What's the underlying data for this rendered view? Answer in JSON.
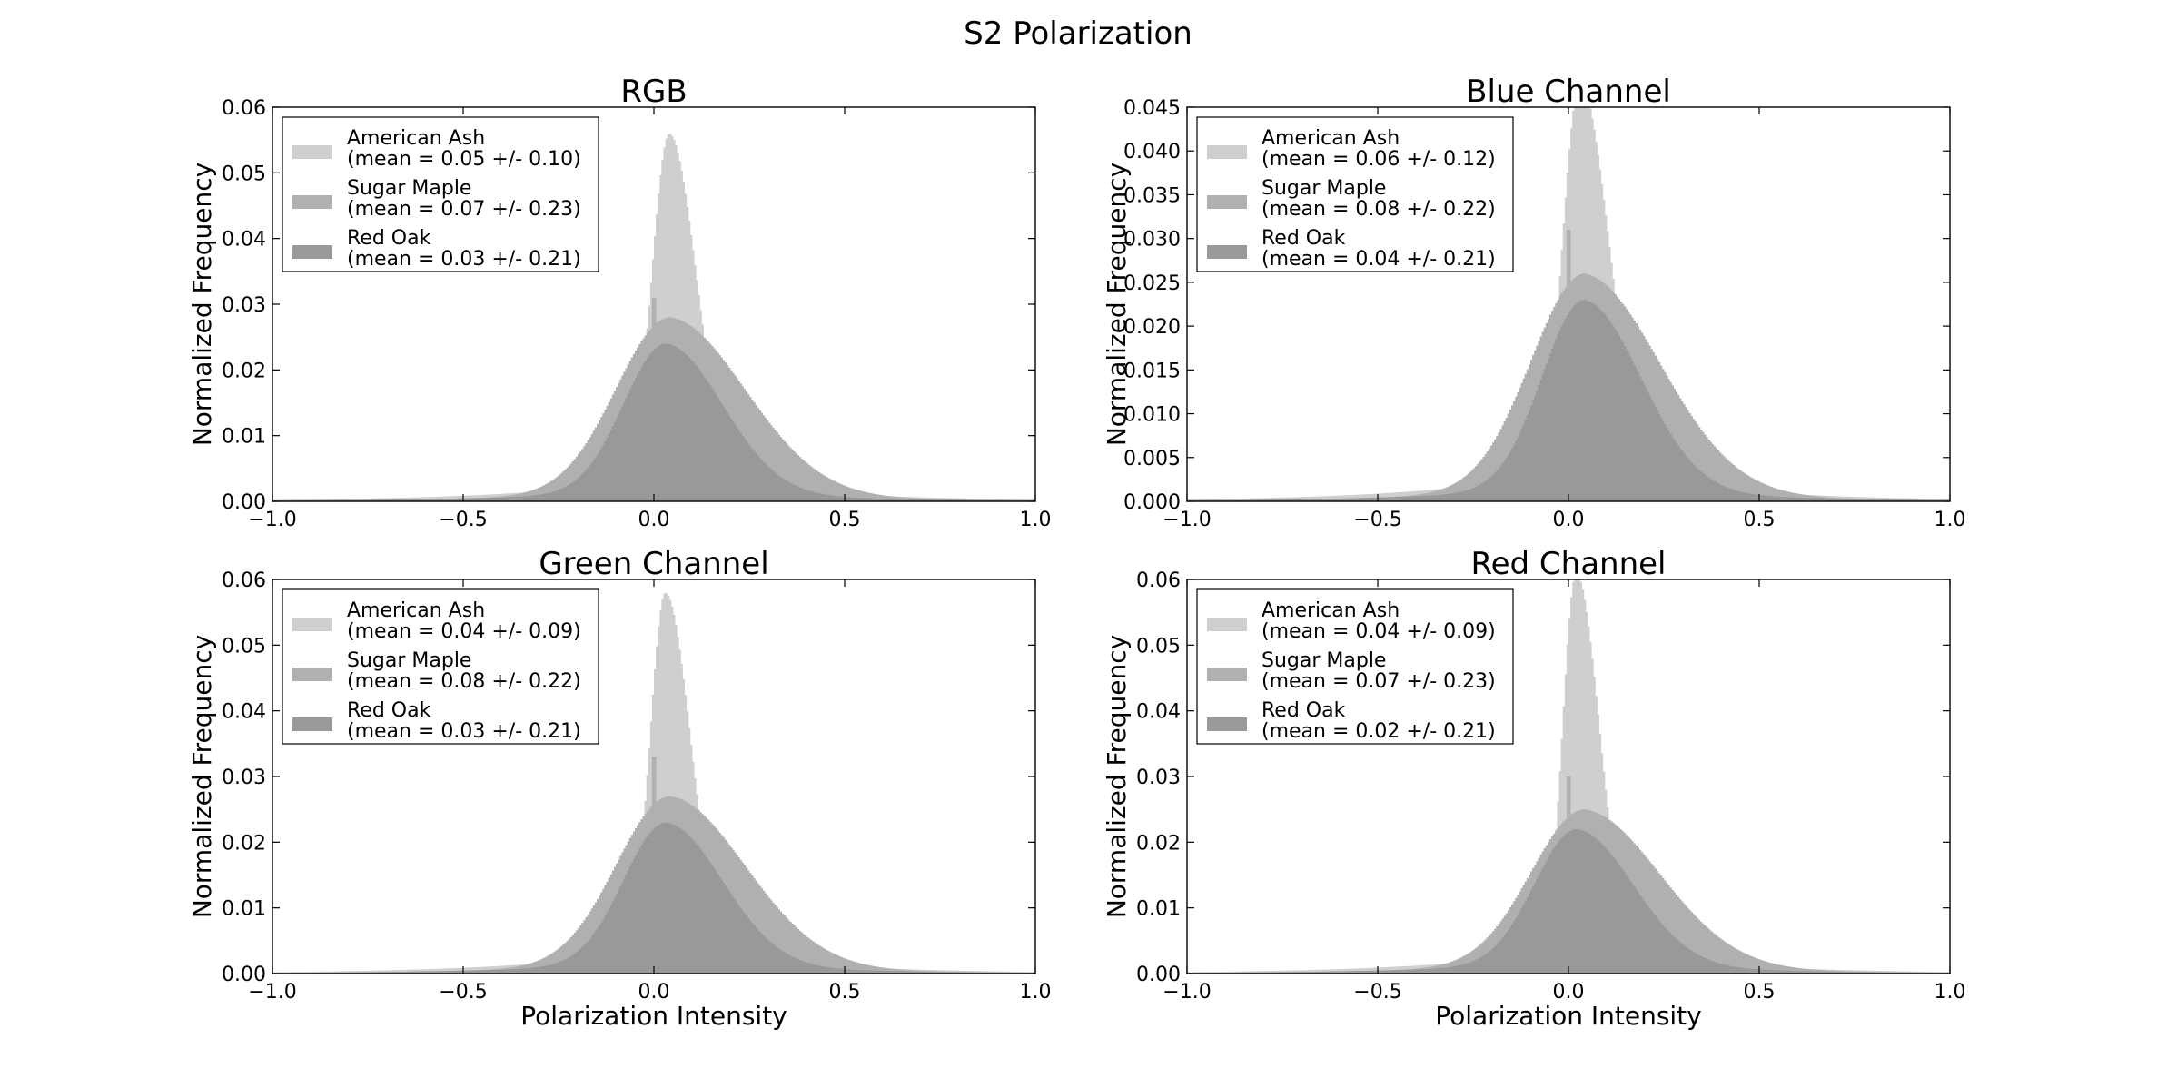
{
  "figure": {
    "title": "S2 Polarization"
  },
  "colors": {
    "American Ash": "#cfcfcf",
    "Sugar Maple": "#b0b0b0",
    "Red Oak": "#999999",
    "legend_border": "#000000",
    "axis": "#000000"
  },
  "chart_data": [
    {
      "type": "bar",
      "chart_kind": "histogram",
      "title": "RGB",
      "xlabel": "",
      "ylabel": "Normalized Frequency",
      "xlim": [
        -1.0,
        1.0
      ],
      "ylim": [
        0,
        0.06
      ],
      "xticks": [
        "−1.0",
        "−0.5",
        "0.0",
        "0.5",
        "1.0"
      ],
      "yticks": [
        "0.00",
        "0.01",
        "0.02",
        "0.03",
        "0.04",
        "0.05",
        "0.06"
      ],
      "legend_position": "upper-left",
      "series": [
        {
          "name": "American Ash",
          "stat": "(mean = 0.05 +/- 0.10)",
          "peak": 0.052,
          "center": 0.04,
          "sigma_left": 0.045,
          "sigma_right": 0.07,
          "tail": 0.004
        },
        {
          "name": "Sugar Maple",
          "stat": "(mean = 0.07 +/- 0.23)",
          "peak": 0.026,
          "center": 0.04,
          "sigma_left": 0.14,
          "sigma_right": 0.2,
          "tail": 0.002,
          "spike_x": 0.0,
          "spike_y": 0.031
        },
        {
          "name": "Red Oak",
          "stat": "(mean = 0.03 +/- 0.21)",
          "peak": 0.022,
          "center": 0.03,
          "sigma_left": 0.11,
          "sigma_right": 0.15,
          "tail": 0.002
        }
      ]
    },
    {
      "type": "bar",
      "chart_kind": "histogram",
      "title": "Blue Channel",
      "xlabel": "",
      "ylabel": "Normalized Frequency",
      "xlim": [
        -1.0,
        1.0
      ],
      "ylim": [
        0,
        0.045
      ],
      "xticks": [
        "−1.0",
        "−0.5",
        "0.0",
        "0.5",
        "1.0"
      ],
      "yticks": [
        "0.000",
        "0.005",
        "0.010",
        "0.015",
        "0.020",
        "0.025",
        "0.030",
        "0.035",
        "0.040",
        "0.045"
      ],
      "legend_position": "upper-left",
      "series": [
        {
          "name": "American Ash",
          "stat": "(mean = 0.06 +/- 0.12)",
          "peak": 0.044,
          "center": 0.03,
          "sigma_left": 0.045,
          "sigma_right": 0.075,
          "tail": 0.004
        },
        {
          "name": "Sugar Maple",
          "stat": "(mean = 0.08 +/- 0.22)",
          "peak": 0.024,
          "center": 0.04,
          "sigma_left": 0.14,
          "sigma_right": 0.2,
          "tail": 0.002,
          "spike_x": 0.0,
          "spike_y": 0.031
        },
        {
          "name": "Red Oak",
          "stat": "(mean = 0.04 +/- 0.21)",
          "peak": 0.021,
          "center": 0.04,
          "sigma_left": 0.11,
          "sigma_right": 0.15,
          "tail": 0.002
        }
      ]
    },
    {
      "type": "bar",
      "chart_kind": "histogram",
      "title": "Green Channel",
      "xlabel": "Polarization Intensity",
      "ylabel": "Normalized Frequency",
      "xlim": [
        -1.0,
        1.0
      ],
      "ylim": [
        0,
        0.06
      ],
      "xticks": [
        "−1.0",
        "−0.5",
        "0.0",
        "0.5",
        "1.0"
      ],
      "yticks": [
        "0.00",
        "0.01",
        "0.02",
        "0.03",
        "0.04",
        "0.05",
        "0.06"
      ],
      "legend_position": "upper-left",
      "series": [
        {
          "name": "American Ash",
          "stat": "(mean = 0.04 +/- 0.09)",
          "peak": 0.054,
          "center": 0.03,
          "sigma_left": 0.04,
          "sigma_right": 0.065,
          "tail": 0.004
        },
        {
          "name": "Sugar Maple",
          "stat": "(mean = 0.08 +/- 0.22)",
          "peak": 0.025,
          "center": 0.04,
          "sigma_left": 0.14,
          "sigma_right": 0.2,
          "tail": 0.002,
          "spike_x": 0.0,
          "spike_y": 0.033
        },
        {
          "name": "Red Oak",
          "stat": "(mean = 0.03 +/- 0.21)",
          "peak": 0.021,
          "center": 0.03,
          "sigma_left": 0.11,
          "sigma_right": 0.15,
          "tail": 0.002
        }
      ]
    },
    {
      "type": "bar",
      "chart_kind": "histogram",
      "title": "Red Channel",
      "xlabel": "Polarization Intensity",
      "ylabel": "Normalized Frequency",
      "xlim": [
        -1.0,
        1.0
      ],
      "ylim": [
        0,
        0.06
      ],
      "xticks": [
        "−1.0",
        "−0.5",
        "0.0",
        "0.5",
        "1.0"
      ],
      "yticks": [
        "0.00",
        "0.01",
        "0.02",
        "0.03",
        "0.04",
        "0.05",
        "0.06"
      ],
      "legend_position": "upper-left",
      "series": [
        {
          "name": "American Ash",
          "stat": "(mean = 0.04 +/- 0.09)",
          "peak": 0.057,
          "center": 0.02,
          "sigma_left": 0.035,
          "sigma_right": 0.06,
          "tail": 0.004
        },
        {
          "name": "Sugar Maple",
          "stat": "(mean = 0.07 +/- 0.23)",
          "peak": 0.023,
          "center": 0.04,
          "sigma_left": 0.14,
          "sigma_right": 0.2,
          "tail": 0.002,
          "spike_x": 0.0,
          "spike_y": 0.03
        },
        {
          "name": "Red Oak",
          "stat": "(mean = 0.02 +/- 0.21)",
          "peak": 0.02,
          "center": 0.02,
          "sigma_left": 0.11,
          "sigma_right": 0.15,
          "tail": 0.002
        }
      ]
    }
  ]
}
